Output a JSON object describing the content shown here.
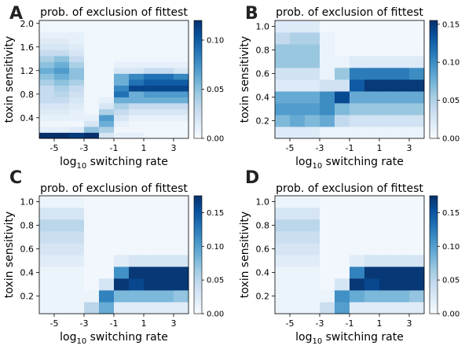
{
  "figure": {
    "colormap": [
      "#f7fbff",
      "#deebf7",
      "#c6dbef",
      "#9ecae1",
      "#6baed6",
      "#4292c6",
      "#2171b5",
      "#08519c",
      "#08306b"
    ]
  },
  "panels": [
    {
      "letter": "A",
      "title": "prob. of exclusion of fittest",
      "xlabel_base": "log",
      "xlabel_sub": "10",
      "xlabel_rest": " switching rate",
      "ylabel": "toxin sensitivity",
      "cb_ticks": [
        "0.00",
        "0.05",
        "0.10"
      ]
    },
    {
      "letter": "B",
      "title": "prob. of exclusion of fittest",
      "xlabel_base": "log",
      "xlabel_sub": "10",
      "xlabel_rest": " switching rate",
      "ylabel": "toxin sensitivity",
      "cb_ticks": [
        "0.00",
        "0.05",
        "0.10",
        "0.15"
      ]
    },
    {
      "letter": "C",
      "title": "prob. of exclusion of fittest",
      "xlabel_base": "log",
      "xlabel_sub": "10",
      "xlabel_rest": " switching rate",
      "ylabel": "toxin sensitivity",
      "cb_ticks": [
        "0.00",
        "0.05",
        "0.10",
        "0.15"
      ]
    },
    {
      "letter": "D",
      "title": "prob. of exclusion of fittest",
      "xlabel_base": "log",
      "xlabel_sub": "10",
      "xlabel_rest": " switching rate",
      "ylabel": "toxin sensitivity",
      "cb_ticks": [
        "0.00",
        "0.05",
        "0.10",
        "0.15"
      ]
    }
  ],
  "chart_data": [
    {
      "type": "heatmap",
      "panel": "A",
      "title": "prob. of exclusion of fittest",
      "xlabel": "log10 switching rate",
      "ylabel": "toxin sensitivity",
      "x_ticks": [
        "-5",
        "-3",
        "-1",
        "1",
        "3"
      ],
      "x_tick_values": [
        -5,
        -3,
        -1,
        1,
        3
      ],
      "y_ticks": [
        "0.4",
        "0.8",
        "1.2",
        "1.6",
        "2.0"
      ],
      "y_tick_values": [
        0.4,
        0.8,
        1.2,
        1.6,
        2.0
      ],
      "x": [
        -5,
        -4,
        -3,
        -2,
        -1,
        0,
        1,
        2,
        3,
        4
      ],
      "y": [
        0.1,
        0.2,
        0.3,
        0.4,
        0.5,
        0.6,
        0.7,
        0.8,
        0.9,
        1.0,
        1.1,
        1.2,
        1.3,
        1.4,
        1.5,
        1.6,
        1.7,
        1.8,
        1.9,
        2.0
      ],
      "xlim": [
        -6,
        4
      ],
      "ylim": [
        0.05,
        2.05
      ],
      "vmin": 0.0,
      "vmax": 0.12,
      "colorbar_ticks": [
        0.0,
        0.05,
        0.1
      ],
      "z": [
        [
          0.12,
          0.12,
          0.115,
          0.12,
          0.02,
          0.01,
          0.01,
          0.005,
          0.005,
          0.005
        ],
        [
          0.01,
          0.01,
          0.015,
          0.05,
          0.04,
          0.005,
          0.005,
          0.005,
          0.005,
          0.005
        ],
        [
          0.005,
          0.005,
          0.005,
          0.02,
          0.06,
          0.01,
          0.005,
          0.005,
          0.005,
          0.005
        ],
        [
          0.01,
          0.01,
          0.01,
          0.01,
          0.07,
          0.02,
          0.01,
          0.01,
          0.01,
          0.01
        ],
        [
          0.015,
          0.015,
          0.01,
          0.005,
          0.04,
          0.03,
          0.02,
          0.02,
          0.02,
          0.02
        ],
        [
          0.02,
          0.02,
          0.015,
          0.005,
          0.02,
          0.04,
          0.03,
          0.03,
          0.03,
          0.03
        ],
        [
          0.03,
          0.03,
          0.02,
          0.005,
          0.01,
          0.06,
          0.06,
          0.06,
          0.06,
          0.06
        ],
        [
          0.03,
          0.035,
          0.025,
          0.005,
          0.005,
          0.09,
          0.06,
          0.07,
          0.07,
          0.07
        ],
        [
          0.03,
          0.04,
          0.03,
          0.005,
          0.005,
          0.08,
          0.11,
          0.11,
          0.11,
          0.11
        ],
        [
          0.04,
          0.05,
          0.04,
          0.005,
          0.005,
          0.06,
          0.09,
          0.1,
          0.1,
          0.1
        ],
        [
          0.05,
          0.06,
          0.05,
          0.005,
          0.005,
          0.06,
          0.08,
          0.09,
          0.09,
          0.08
        ],
        [
          0.06,
          0.07,
          0.05,
          0.005,
          0.005,
          0.02,
          0.02,
          0.03,
          0.03,
          0.02
        ],
        [
          0.05,
          0.06,
          0.04,
          0.005,
          0.005,
          0.01,
          0.01,
          0.01,
          0.01,
          0.01
        ],
        [
          0.04,
          0.05,
          0.03,
          0.005,
          0.005,
          0.005,
          0.005,
          0.005,
          0.005,
          0.005
        ],
        [
          0.03,
          0.03,
          0.02,
          0.005,
          0.005,
          0.005,
          0.005,
          0.005,
          0.005,
          0.005
        ],
        [
          0.02,
          0.02,
          0.015,
          0.005,
          0.005,
          0.005,
          0.005,
          0.005,
          0.005,
          0.005
        ],
        [
          0.015,
          0.015,
          0.01,
          0.005,
          0.005,
          0.005,
          0.005,
          0.005,
          0.005,
          0.005
        ],
        [
          0.01,
          0.01,
          0.01,
          0.005,
          0.005,
          0.005,
          0.005,
          0.005,
          0.005,
          0.005
        ],
        [
          0.005,
          0.005,
          0.005,
          0.005,
          0.005,
          0.005,
          0.005,
          0.005,
          0.005,
          0.005
        ],
        [
          0.005,
          0.005,
          0.005,
          0.005,
          0.005,
          0.005,
          0.005,
          0.005,
          0.005,
          0.005
        ]
      ]
    },
    {
      "type": "heatmap",
      "panel": "B",
      "title": "prob. of exclusion of fittest",
      "xlabel": "log10 switching rate",
      "ylabel": "toxin sensitivity",
      "x_ticks": [
        "-5",
        "-3",
        "-1",
        "1",
        "3"
      ],
      "x_tick_values": [
        -5,
        -3,
        -1,
        1,
        3
      ],
      "y_ticks": [
        "0.2",
        "0.4",
        "0.6",
        "0.8",
        "1.0"
      ],
      "y_tick_values": [
        0.2,
        0.4,
        0.6,
        0.8,
        1.0
      ],
      "x": [
        -5,
        -4,
        -3,
        -2,
        -1,
        0,
        1,
        2,
        3,
        4
      ],
      "y": [
        0.1,
        0.2,
        0.3,
        0.4,
        0.5,
        0.6,
        0.7,
        0.8,
        0.9,
        1.0
      ],
      "xlim": [
        -6,
        4
      ],
      "ylim": [
        0.05,
        1.05
      ],
      "vmin": 0.0,
      "vmax": 0.155,
      "colorbar_ticks": [
        0.0,
        0.05,
        0.1,
        0.15
      ],
      "z": [
        [
          0.02,
          0.02,
          0.02,
          0.01,
          0.01,
          0.01,
          0.01,
          0.01,
          0.01,
          0.01
        ],
        [
          0.07,
          0.08,
          0.07,
          0.08,
          0.04,
          0.03,
          0.03,
          0.03,
          0.03,
          0.03
        ],
        [
          0.09,
          0.09,
          0.09,
          0.1,
          0.07,
          0.06,
          0.06,
          0.06,
          0.06,
          0.06
        ],
        [
          0.08,
          0.08,
          0.08,
          0.1,
          0.14,
          0.08,
          0.08,
          0.08,
          0.08,
          0.08
        ],
        [
          0.02,
          0.02,
          0.02,
          0.03,
          0.03,
          0.13,
          0.15,
          0.15,
          0.15,
          0.15
        ],
        [
          0.03,
          0.03,
          0.03,
          0.01,
          0.06,
          0.11,
          0.11,
          0.11,
          0.11,
          0.1
        ],
        [
          0.06,
          0.06,
          0.06,
          0.01,
          0.01,
          0.02,
          0.02,
          0.02,
          0.02,
          0.02
        ],
        [
          0.06,
          0.06,
          0.06,
          0.01,
          0.005,
          0.005,
          0.005,
          0.005,
          0.005,
          0.005
        ],
        [
          0.04,
          0.05,
          0.05,
          0.01,
          0.005,
          0.005,
          0.005,
          0.005,
          0.005,
          0.005
        ],
        [
          0.02,
          0.02,
          0.02,
          0.005,
          0.005,
          0.005,
          0.005,
          0.005,
          0.005,
          0.005
        ]
      ]
    },
    {
      "type": "heatmap",
      "panel": "C",
      "title": "prob. of exclusion of fittest",
      "xlabel": "log10 switching rate",
      "ylabel": "toxin sensitivity",
      "x_ticks": [
        "-5",
        "-3",
        "-1",
        "1",
        "3"
      ],
      "x_tick_values": [
        -5,
        -3,
        -1,
        1,
        3
      ],
      "y_ticks": [
        "0.2",
        "0.4",
        "0.6",
        "0.8",
        "1.0"
      ],
      "y_tick_values": [
        0.2,
        0.4,
        0.6,
        0.8,
        1.0
      ],
      "x": [
        -5,
        -4,
        -3,
        -2,
        -1,
        0,
        1,
        2,
        3,
        4
      ],
      "y": [
        0.1,
        0.2,
        0.3,
        0.4,
        0.5,
        0.6,
        0.7,
        0.8,
        0.9,
        1.0
      ],
      "xlim": [
        -6,
        4
      ],
      "ylim": [
        0.05,
        1.05
      ],
      "vmin": 0.0,
      "vmax": 0.175,
      "colorbar_ticks": [
        0.0,
        0.05,
        0.1,
        0.15
      ],
      "z": [
        [
          0.01,
          0.01,
          0.01,
          0.05,
          0.09,
          0.02,
          0.02,
          0.02,
          0.02,
          0.02
        ],
        [
          0.01,
          0.01,
          0.01,
          0.01,
          0.12,
          0.08,
          0.08,
          0.08,
          0.08,
          0.07
        ],
        [
          0.01,
          0.01,
          0.01,
          0.005,
          0.03,
          0.17,
          0.16,
          0.17,
          0.17,
          0.17
        ],
        [
          0.01,
          0.01,
          0.01,
          0.005,
          0.005,
          0.11,
          0.17,
          0.17,
          0.17,
          0.17
        ],
        [
          0.02,
          0.02,
          0.02,
          0.005,
          0.005,
          0.02,
          0.03,
          0.03,
          0.03,
          0.03
        ],
        [
          0.03,
          0.03,
          0.03,
          0.005,
          0.005,
          0.005,
          0.005,
          0.005,
          0.005,
          0.005
        ],
        [
          0.04,
          0.04,
          0.04,
          0.005,
          0.005,
          0.005,
          0.005,
          0.005,
          0.005,
          0.005
        ],
        [
          0.05,
          0.05,
          0.05,
          0.005,
          0.005,
          0.005,
          0.005,
          0.005,
          0.005,
          0.005
        ],
        [
          0.03,
          0.03,
          0.03,
          0.005,
          0.005,
          0.005,
          0.005,
          0.005,
          0.005,
          0.005
        ],
        [
          0.01,
          0.01,
          0.01,
          0.005,
          0.005,
          0.005,
          0.005,
          0.005,
          0.005,
          0.005
        ]
      ]
    },
    {
      "type": "heatmap",
      "panel": "D",
      "title": "prob. of exclusion of fittest",
      "xlabel": "log10 switching rate",
      "ylabel": "toxin sensitivity",
      "x_ticks": [
        "-5",
        "-3",
        "-1",
        "1",
        "3"
      ],
      "x_tick_values": [
        -5,
        -3,
        -1,
        1,
        3
      ],
      "y_ticks": [
        "0.2",
        "0.4",
        "0.6",
        "0.8",
        "1.0"
      ],
      "y_tick_values": [
        0.2,
        0.4,
        0.6,
        0.8,
        1.0
      ],
      "x": [
        -5,
        -4,
        -3,
        -2,
        -1,
        0,
        1,
        2,
        3,
        4
      ],
      "y": [
        0.1,
        0.2,
        0.3,
        0.4,
        0.5,
        0.6,
        0.7,
        0.8,
        0.9,
        1.0
      ],
      "xlim": [
        -6,
        4
      ],
      "ylim": [
        0.05,
        1.05
      ],
      "vmin": 0.0,
      "vmax": 0.175,
      "colorbar_ticks": [
        0.0,
        0.05,
        0.1,
        0.15
      ],
      "z": [
        [
          0.01,
          0.01,
          0.01,
          0.04,
          0.1,
          0.02,
          0.02,
          0.02,
          0.02,
          0.02
        ],
        [
          0.01,
          0.01,
          0.01,
          0.01,
          0.11,
          0.09,
          0.08,
          0.08,
          0.08,
          0.07
        ],
        [
          0.01,
          0.01,
          0.01,
          0.005,
          0.03,
          0.17,
          0.16,
          0.17,
          0.17,
          0.17
        ],
        [
          0.01,
          0.01,
          0.01,
          0.005,
          0.005,
          0.12,
          0.17,
          0.17,
          0.17,
          0.17
        ],
        [
          0.02,
          0.02,
          0.02,
          0.005,
          0.005,
          0.02,
          0.03,
          0.03,
          0.03,
          0.03
        ],
        [
          0.03,
          0.03,
          0.03,
          0.005,
          0.005,
          0.005,
          0.005,
          0.005,
          0.005,
          0.005
        ],
        [
          0.04,
          0.04,
          0.04,
          0.005,
          0.005,
          0.005,
          0.005,
          0.005,
          0.005,
          0.005
        ],
        [
          0.05,
          0.05,
          0.05,
          0.005,
          0.005,
          0.005,
          0.005,
          0.005,
          0.005,
          0.005
        ],
        [
          0.03,
          0.03,
          0.03,
          0.005,
          0.005,
          0.005,
          0.005,
          0.005,
          0.005,
          0.005
        ],
        [
          0.01,
          0.01,
          0.01,
          0.005,
          0.005,
          0.005,
          0.005,
          0.005,
          0.005,
          0.005
        ]
      ]
    }
  ]
}
